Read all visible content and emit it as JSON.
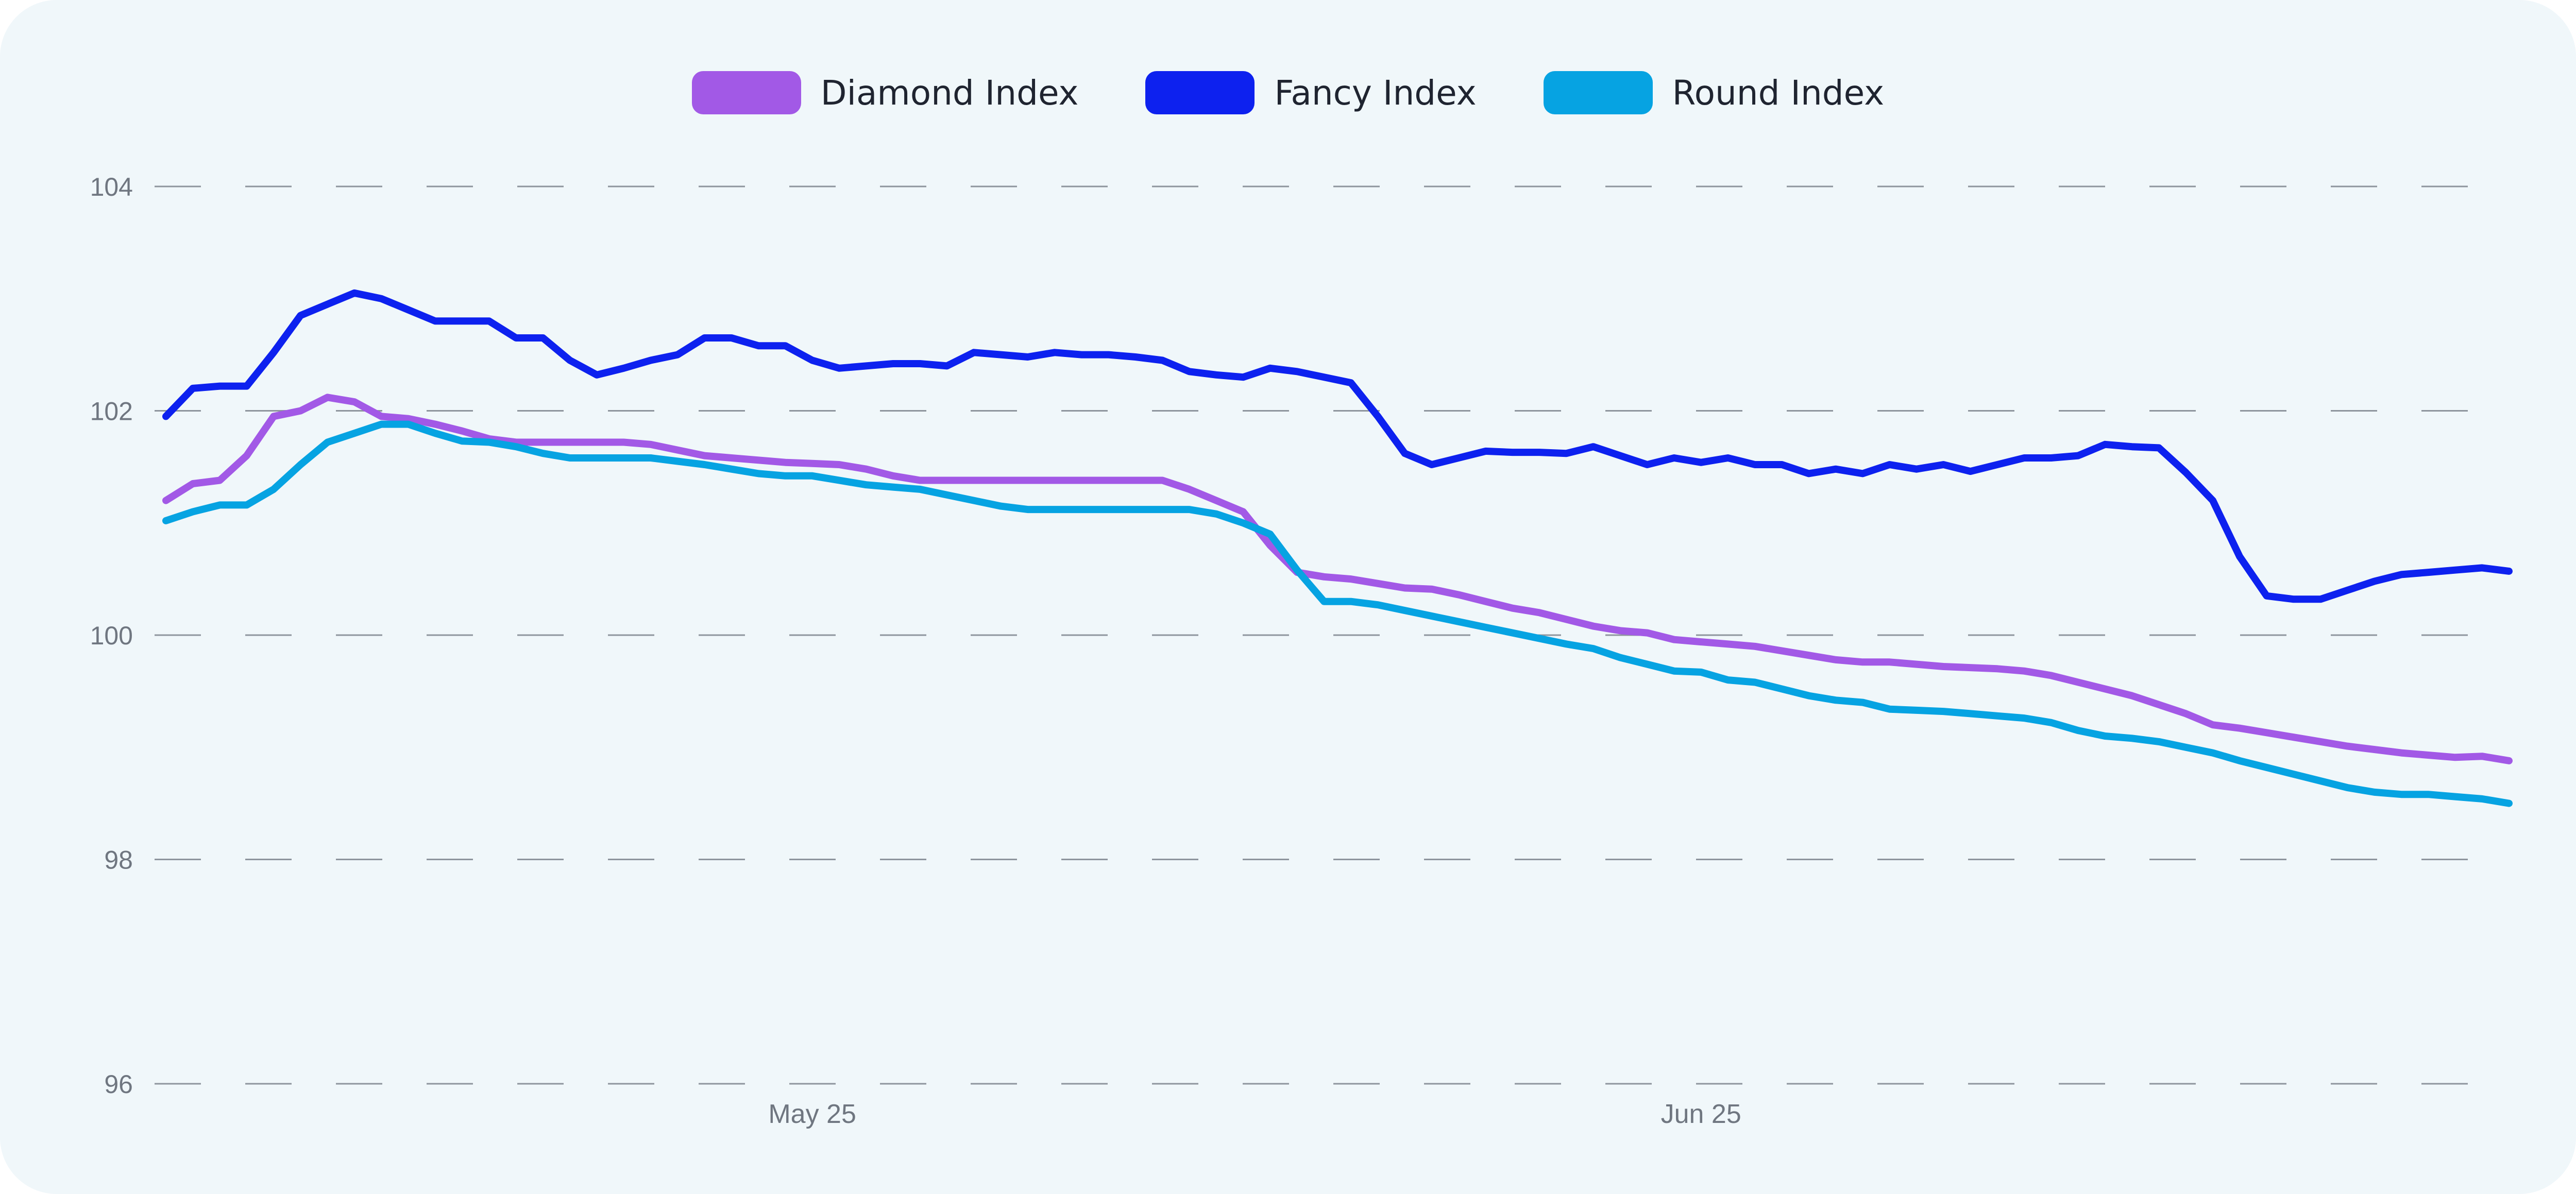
{
  "chart_data": {
    "type": "line",
    "title": "",
    "xlabel": "",
    "ylabel": "",
    "ylim": [
      96,
      104
    ],
    "yticks": [
      "96",
      "98",
      "100",
      "102",
      "104"
    ],
    "grid": true,
    "legend_placement": "top-center",
    "x_tick_labels": [
      {
        "label": "May 25",
        "index": 25
      },
      {
        "label": "Jun 25",
        "index": 58
      }
    ],
    "x": [
      1,
      2,
      3,
      4,
      5,
      6,
      7,
      8,
      9,
      10,
      11,
      12,
      13,
      14,
      15,
      16,
      17,
      18,
      19,
      20,
      21,
      22,
      23,
      24,
      25,
      26,
      27,
      28,
      29,
      30,
      31,
      32,
      33,
      34,
      35,
      36,
      37,
      38,
      39,
      40,
      41,
      42,
      43,
      44,
      45,
      46,
      47,
      48,
      49,
      50,
      51,
      52,
      53,
      54,
      55,
      56,
      57,
      58,
      59,
      60,
      61,
      62,
      63,
      64,
      65,
      66,
      67,
      68,
      69,
      70,
      71,
      72,
      73,
      74,
      75,
      76,
      77,
      78,
      79,
      80,
      81,
      82,
      83,
      84,
      85,
      86,
      87,
      88
    ],
    "series": [
      {
        "name": "Diamond Index",
        "color": "#a259e6",
        "values": [
          101.2,
          101.35,
          101.38,
          101.6,
          101.95,
          102.0,
          102.12,
          102.08,
          101.95,
          101.93,
          101.88,
          101.82,
          101.75,
          101.72,
          101.72,
          101.72,
          101.72,
          101.72,
          101.7,
          101.65,
          101.6,
          101.58,
          101.56,
          101.54,
          101.53,
          101.52,
          101.48,
          101.42,
          101.38,
          101.38,
          101.38,
          101.38,
          101.38,
          101.38,
          101.38,
          101.38,
          101.38,
          101.38,
          101.3,
          101.2,
          101.1,
          100.8,
          100.56,
          100.52,
          100.5,
          100.46,
          100.42,
          100.41,
          100.36,
          100.3,
          100.24,
          100.2,
          100.14,
          100.08,
          100.04,
          100.02,
          99.96,
          99.94,
          99.92,
          99.9,
          99.86,
          99.82,
          99.78,
          99.76,
          99.76,
          99.74,
          99.72,
          99.71,
          99.7,
          99.68,
          99.64,
          99.58,
          99.52,
          99.46,
          99.38,
          99.3,
          99.2,
          99.17,
          99.13,
          99.09,
          99.05,
          99.01,
          98.98,
          98.95,
          98.93,
          98.91,
          98.92,
          98.88
        ]
      },
      {
        "name": "Fancy Index",
        "color": "#0d21ef",
        "values": [
          101.95,
          102.2,
          102.22,
          102.22,
          102.52,
          102.85,
          102.95,
          103.05,
          103.0,
          102.9,
          102.8,
          102.8,
          102.8,
          102.65,
          102.65,
          102.45,
          102.32,
          102.38,
          102.45,
          102.5,
          102.65,
          102.65,
          102.58,
          102.58,
          102.45,
          102.38,
          102.4,
          102.42,
          102.42,
          102.4,
          102.52,
          102.5,
          102.48,
          102.52,
          102.5,
          102.5,
          102.48,
          102.45,
          102.35,
          102.32,
          102.3,
          102.38,
          102.35,
          102.3,
          102.25,
          101.95,
          101.62,
          101.52,
          101.58,
          101.64,
          101.63,
          101.63,
          101.62,
          101.68,
          101.6,
          101.52,
          101.58,
          101.54,
          101.58,
          101.52,
          101.52,
          101.44,
          101.48,
          101.44,
          101.52,
          101.48,
          101.52,
          101.46,
          101.52,
          101.58,
          101.58,
          101.6,
          101.7,
          101.68,
          101.67,
          101.45,
          101.2,
          100.7,
          100.35,
          100.32,
          100.32,
          100.4,
          100.48,
          100.54,
          100.56,
          100.58,
          100.6,
          100.57
        ]
      },
      {
        "name": "Round Index",
        "color": "#06a3e2",
        "values": [
          101.02,
          101.1,
          101.16,
          101.16,
          101.3,
          101.52,
          101.72,
          101.8,
          101.88,
          101.88,
          101.8,
          101.73,
          101.72,
          101.68,
          101.62,
          101.58,
          101.58,
          101.58,
          101.58,
          101.55,
          101.52,
          101.48,
          101.44,
          101.42,
          101.42,
          101.38,
          101.34,
          101.32,
          101.3,
          101.25,
          101.2,
          101.15,
          101.12,
          101.12,
          101.12,
          101.12,
          101.12,
          101.12,
          101.12,
          101.08,
          101.0,
          100.9,
          100.58,
          100.3,
          100.3,
          100.27,
          100.22,
          100.17,
          100.12,
          100.07,
          100.02,
          99.97,
          99.92,
          99.88,
          99.8,
          99.74,
          99.68,
          99.67,
          99.6,
          99.58,
          99.52,
          99.46,
          99.42,
          99.4,
          99.34,
          99.33,
          99.32,
          99.3,
          99.28,
          99.26,
          99.22,
          99.15,
          99.1,
          99.08,
          99.05,
          99.0,
          98.95,
          98.88,
          98.82,
          98.76,
          98.7,
          98.64,
          98.6,
          98.58,
          98.58,
          98.56,
          98.54,
          98.5
        ]
      }
    ]
  }
}
